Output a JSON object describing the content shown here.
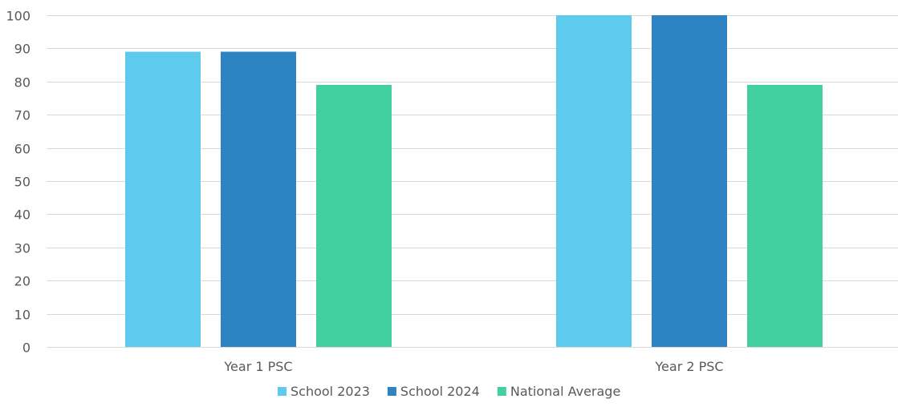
{
  "chart_data": {
    "type": "bar",
    "categories": [
      "Year 1 PSC",
      "Year 2 PSC"
    ],
    "series": [
      {
        "name": "School 2023",
        "color": "#5ecbee",
        "values": [
          89,
          100
        ]
      },
      {
        "name": "School 2024",
        "color": "#2e83c3",
        "values": [
          89,
          100
        ]
      },
      {
        "name": "National Average",
        "color": "#42d0a1",
        "values": [
          79,
          79
        ]
      }
    ],
    "ylim": [
      0,
      100
    ],
    "yticks": [
      0,
      10,
      20,
      30,
      40,
      50,
      60,
      70,
      80,
      90,
      100
    ],
    "grid": true,
    "legend_position": "bottom",
    "title": "",
    "xlabel": "",
    "ylabel": ""
  }
}
